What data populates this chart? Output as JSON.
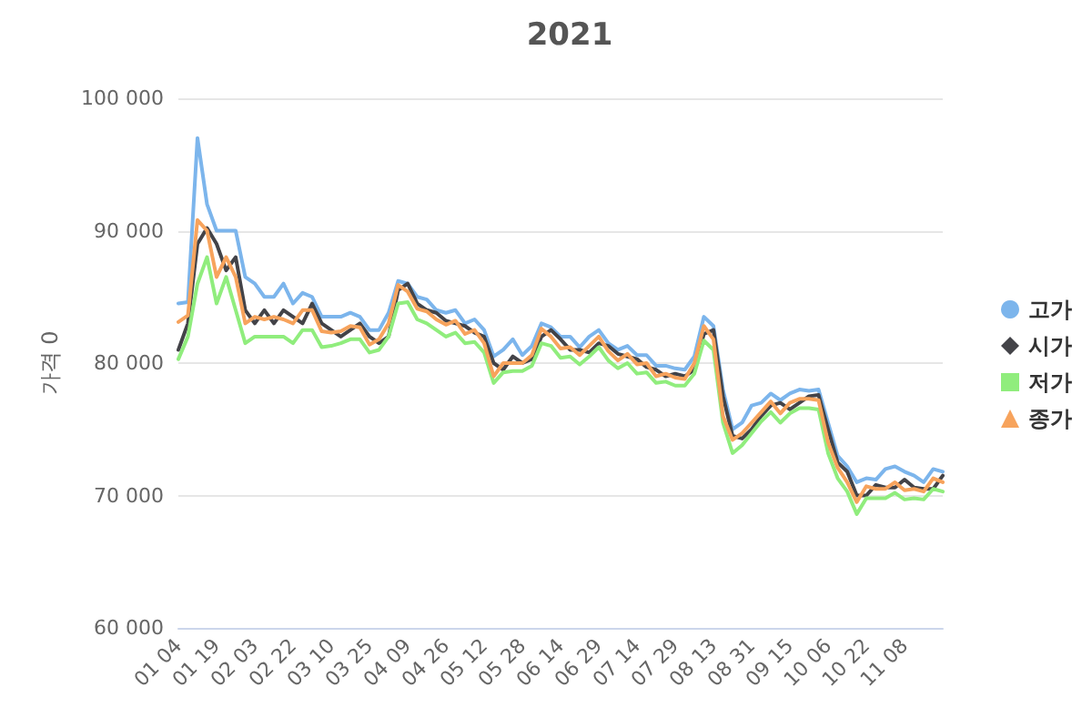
{
  "chart_data": {
    "type": "line",
    "title": "2021",
    "ylabel": "가격 0",
    "categories": [
      "01 04",
      null,
      null,
      null,
      "01 19",
      null,
      null,
      null,
      "02 03",
      null,
      null,
      null,
      "02 22",
      null,
      null,
      null,
      "03 10",
      null,
      null,
      null,
      "03 25",
      null,
      null,
      null,
      "04 09",
      null,
      null,
      null,
      "04 26",
      null,
      null,
      null,
      "05 12",
      null,
      null,
      null,
      "05 28",
      null,
      null,
      null,
      "06 14",
      null,
      null,
      null,
      "06 29",
      null,
      null,
      null,
      "07 14",
      null,
      null,
      null,
      "07 29",
      null,
      null,
      null,
      "08 13",
      null,
      null,
      null,
      "08 31",
      null,
      null,
      null,
      "09 15",
      null,
      null,
      null,
      "10 06",
      null,
      null,
      null,
      "10 22",
      null,
      null,
      null,
      "11 08",
      null,
      null,
      null,
      null
    ],
    "series": [
      {
        "name": "고가",
        "color": "#7cb5ec",
        "values": [
          84500,
          84600,
          97000,
          92000,
          90000,
          90000,
          90000,
          86500,
          86000,
          85000,
          85000,
          86000,
          84500,
          85300,
          85000,
          83500,
          83500,
          83500,
          83800,
          83500,
          82500,
          82500,
          83800,
          86200,
          86000,
          85000,
          84800,
          84000,
          83800,
          84000,
          83000,
          83300,
          82500,
          80500,
          81000,
          81800,
          80600,
          81300,
          83000,
          82700,
          82000,
          82000,
          81200,
          82000,
          82500,
          81500,
          81000,
          81300,
          80600,
          80600,
          79800,
          79800,
          79600,
          79500,
          80500,
          83500,
          82800,
          78000,
          75000,
          75500,
          76800,
          77000,
          77700,
          77200,
          77700,
          78000,
          77900,
          78000,
          75500,
          73000,
          72200,
          71000,
          71300,
          71200,
          72000,
          72200,
          71800,
          71500,
          71000,
          72000,
          71800
        ]
      },
      {
        "name": "시가",
        "color": "#434348",
        "values": [
          81000,
          83000,
          89000,
          90200,
          89000,
          87000,
          88000,
          84000,
          83000,
          84000,
          83000,
          84000,
          83500,
          83000,
          84500,
          83000,
          82500,
          82000,
          82500,
          83000,
          82000,
          81500,
          82000,
          85500,
          86000,
          84500,
          84000,
          83800,
          83200,
          83000,
          82800,
          82300,
          82000,
          80000,
          79500,
          80500,
          80000,
          80300,
          82000,
          82500,
          81800,
          81000,
          81000,
          80800,
          81500,
          81300,
          80700,
          80500,
          80300,
          79700,
          79500,
          79000,
          79200,
          79000,
          79500,
          82200,
          82500,
          77500,
          74500,
          74300,
          75000,
          76000,
          76800,
          77000,
          76500,
          77000,
          77500,
          77600,
          75000,
          72500,
          71800,
          70000,
          70000,
          70800,
          70600,
          70600,
          71200,
          70600,
          70500,
          70500,
          71500
        ]
      },
      {
        "name": "저가",
        "color": "#90ed7d",
        "values": [
          80300,
          82000,
          86000,
          88000,
          84500,
          86500,
          84000,
          81500,
          82000,
          82000,
          82000,
          82000,
          81500,
          82500,
          82500,
          81200,
          81300,
          81500,
          81800,
          81800,
          80800,
          81000,
          82000,
          84500,
          84600,
          83300,
          83000,
          82500,
          82000,
          82300,
          81500,
          81600,
          80800,
          78500,
          79300,
          79400,
          79400,
          79800,
          81500,
          81300,
          80400,
          80500,
          79900,
          80500,
          81200,
          80200,
          79600,
          80000,
          79200,
          79300,
          78500,
          78600,
          78300,
          78300,
          79200,
          81700,
          81000,
          75500,
          73200,
          73800,
          74700,
          75600,
          76300,
          75500,
          76200,
          76600,
          76600,
          76500,
          73200,
          71300,
          70300,
          68600,
          69800,
          69800,
          69800,
          70200,
          69700,
          69800,
          69700,
          70500,
          70300
        ]
      },
      {
        "name": "종가",
        "color": "#f7a35c",
        "values": [
          83100,
          83600,
          90800,
          90000,
          86500,
          88000,
          86500,
          83000,
          83500,
          83300,
          83500,
          83300,
          83000,
          84000,
          84000,
          82400,
          82300,
          82400,
          82800,
          82700,
          81400,
          81800,
          83000,
          85900,
          85400,
          84100,
          83900,
          83300,
          82900,
          83200,
          82200,
          82500,
          81500,
          79000,
          80000,
          80000,
          80000,
          80600,
          82600,
          82000,
          81100,
          81200,
          80600,
          81300,
          82000,
          80900,
          80200,
          80700,
          79900,
          80000,
          79000,
          79200,
          78900,
          78800,
          80000,
          82800,
          81800,
          76000,
          74200,
          74700,
          75500,
          76300,
          77100,
          76200,
          77000,
          77300,
          77300,
          77200,
          74000,
          72100,
          71000,
          69500,
          70700,
          70500,
          70500,
          71000,
          70400,
          70500,
          70300,
          71300,
          71000
        ]
      }
    ],
    "ylim": [
      60000,
      100000
    ],
    "yticks": [
      {
        "value": 60000,
        "label": "60 000"
      },
      {
        "value": 70000,
        "label": "70 000"
      },
      {
        "value": 80000,
        "label": "80 000"
      },
      {
        "value": 90000,
        "label": "90 000"
      },
      {
        "value": 100000,
        "label": "100 000"
      }
    ],
    "grid": "y",
    "legend": "right",
    "line_style": "solid"
  }
}
